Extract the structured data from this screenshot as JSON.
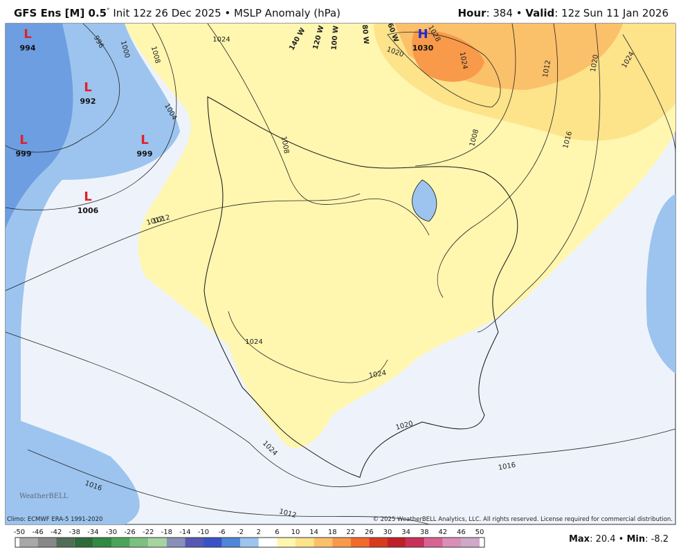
{
  "header": {
    "title": [
      "GFS Ens [M] 0.5",
      "°",
      " Init 12z 26 Dec 2025 • MSLP Anomaly (hPa)"
    ],
    "valid": [
      "Hour",
      ": 384 • ",
      "Valid",
      ": 12z Sun 11 Jan 2026"
    ]
  },
  "centers": [
    {
      "type": "L",
      "value": "994"
    },
    {
      "type": "L",
      "value": "992"
    },
    {
      "type": "L",
      "value": "999"
    },
    {
      "type": "L",
      "value": "999"
    },
    {
      "type": "L",
      "value": "1006"
    },
    {
      "type": "H",
      "value": "1030"
    }
  ],
  "isobar_labels": [
    "996",
    "1000",
    "1008",
    "1024",
    "1004",
    "1012",
    "1020",
    "1028",
    "1024",
    "1008",
    "1012",
    "1020",
    "1024",
    "1016",
    "1008",
    "1024",
    "1024",
    "1024",
    "1020",
    "1016",
    "1016",
    "1012",
    "1012"
  ],
  "longitudes": [
    "140 W",
    "120 W",
    "100 W",
    "80 W",
    "60 W"
  ],
  "footer": {
    "climo": "Climo: ECMWF ERA-5 1991-2020",
    "copyright": "© 2025 WeatherBELL Analytics, LLC. All rights reserved. License required for commercial distribution.",
    "stats": [
      "Max",
      ": 20.4 • ",
      "Min",
      ": -8.2"
    ],
    "logo": "WeatherBELL"
  },
  "colorbar": {
    "ticks": [
      -50,
      -46,
      -42,
      -38,
      -34,
      -30,
      -26,
      -22,
      -18,
      -14,
      -10,
      -6,
      -2,
      2,
      6,
      10,
      14,
      18,
      22,
      26,
      30,
      34,
      38,
      42,
      46,
      50
    ],
    "colors": [
      "#a8a8a8",
      "#888888",
      "#4f6e55",
      "#2e6b3a",
      "#2f8a42",
      "#4aa55a",
      "#7cc07f",
      "#a6d3a0",
      "#8a8fb8",
      "#5658b5",
      "#3a52c8",
      "#4f86d8",
      "#9cc4ee",
      "#ffffff",
      "#fff6b0",
      "#fde38a",
      "#fbc06a",
      "#f89a4a",
      "#f26a2a",
      "#d93a1e",
      "#c01f2a",
      "#c8305a",
      "#d86393",
      "#d98fb8",
      "#cfa9c8"
    ]
  }
}
